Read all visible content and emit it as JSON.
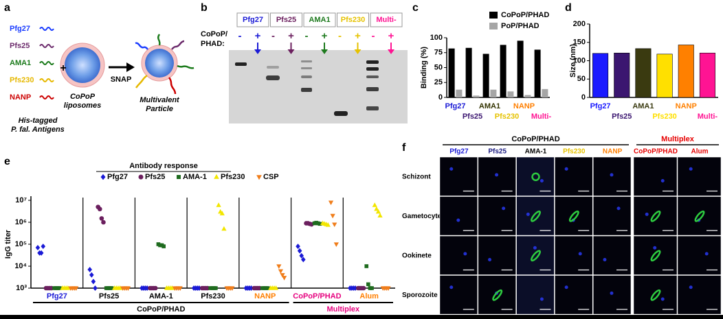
{
  "panel_a": {
    "label": "a",
    "antigens": [
      "Pfg27",
      "Pfs25",
      "AMA1",
      "Pfs230",
      "NANP"
    ],
    "antigen_colors": [
      "#1a3cff",
      "#6b2a6b",
      "#1a7a1a",
      "#e6b800",
      "#cc0000"
    ],
    "plus": "+",
    "liposome_label": [
      "CoPoP",
      "liposomes"
    ],
    "antigen_caption": [
      "His-tagged",
      "P. fal. Antigens"
    ],
    "arrow_label": "SNAP",
    "product_label": [
      "Multivalent",
      "Particle"
    ]
  },
  "panel_b": {
    "label": "b",
    "row_label": [
      "CoPoP/",
      "PHAD:"
    ],
    "lanes": [
      "Pfg27",
      "Pfs25",
      "AMA1",
      "Pfs230",
      "Multi-"
    ],
    "lane_colors": [
      "#1a1ad6",
      "#6b1f5e",
      "#1e7a1e",
      "#e6c200",
      "#ff1493"
    ],
    "minus": "-",
    "plus": "+"
  },
  "chart_data": [
    {
      "type": "bar",
      "panel_label": "c",
      "ylabel": "Binding (%)",
      "categories": [
        "Pfg27",
        "Pfs25",
        "AMA1",
        "Pfs230",
        "NANP",
        "Multi-"
      ],
      "category_colors": [
        "#1a1ad6",
        "#3b1670",
        "#333300",
        "#e6c200",
        "#ff7f00",
        "#ff1493"
      ],
      "series": [
        {
          "name": "CoPoP/PHAD",
          "color": "#000000",
          "values": [
            82,
            83,
            73,
            88,
            95,
            80
          ]
        },
        {
          "name": "PoP/PHAD",
          "color": "#a6a6a6",
          "values": [
            13,
            3,
            13,
            10,
            4,
            14
          ]
        }
      ],
      "ylim": [
        0,
        100
      ],
      "yticks": [
        0,
        25,
        50,
        75,
        100
      ]
    },
    {
      "type": "bar",
      "panel_label": "d",
      "ylabel": "Size (nm)",
      "categories": [
        "Pfg27",
        "Pfs25",
        "AMA1",
        "Pfs230",
        "NANP",
        "Multi-"
      ],
      "values": [
        120,
        121,
        133,
        118,
        143,
        121
      ],
      "colors": [
        "#1a1aff",
        "#3b1670",
        "#3a3a10",
        "#ffe000",
        "#ff8000",
        "#ff1493"
      ],
      "ylim": [
        0,
        200
      ],
      "yticks": [
        0,
        50,
        100,
        150,
        200
      ]
    },
    {
      "type": "strip",
      "panel_label": "e",
      "title": "Antibody response",
      "ylabel": "IgG titer",
      "log_y": true,
      "categories": [
        "Pfg27",
        "Pfs25",
        "AMA-1",
        "Pfs230",
        "NANP",
        "CoPoP/PHAD",
        "Alum"
      ],
      "category_colors": [
        "#1a1ad6",
        "#000000",
        "#000000",
        "#000000",
        "#ff7f00",
        "#e6007e",
        "#ff7f00"
      ],
      "category_groups": [
        {
          "name": "CoPoP/PHAD",
          "count": 5,
          "color": "#000000"
        },
        {
          "name": "Multiplex",
          "count": 2,
          "color": "#e6007e"
        }
      ],
      "series": [
        {
          "name": "Pfg27",
          "color": "#1a1ad6",
          "marker": "diamond",
          "values": [
            [
              70000,
              40000,
              40000,
              80000
            ],
            [
              7000,
              4000,
              2000,
              1000
            ],
            [
              1000,
              1000,
              1000,
              1000
            ],
            [
              1000,
              1000,
              1000,
              1000
            ],
            [
              1000,
              1000,
              1000,
              1000
            ],
            [
              80000,
              50000,
              30000,
              20000
            ],
            [
              1000,
              1000,
              1000,
              1000
            ]
          ]
        },
        {
          "name": "Pfs25",
          "color": "#6b1f5e",
          "marker": "circle",
          "values": [
            [
              1000,
              1000,
              1000,
              1000
            ],
            [
              5000000,
              4000000,
              1500000,
              1000000
            ],
            [
              1000,
              1000,
              1000,
              1000
            ],
            [
              1000,
              1000,
              1000,
              1000
            ],
            [
              1000,
              1000,
              1000,
              1000
            ],
            [
              900000,
              900000,
              850000,
              800000
            ],
            [
              1000,
              1000,
              1000,
              1000
            ]
          ]
        },
        {
          "name": "AMA-1",
          "color": "#1e6b1e",
          "marker": "square",
          "values": [
            [
              1000,
              1000,
              1000,
              1000
            ],
            [
              1000,
              1000,
              1000,
              1000
            ],
            [
              100000,
              90000,
              90000,
              80000
            ],
            [
              1000,
              1000,
              1000,
              1000
            ],
            [
              1000,
              1000,
              1000,
              1000
            ],
            [
              900000,
              950000,
              900000,
              850000
            ],
            [
              10000,
              1500,
              1000,
              1000
            ]
          ]
        },
        {
          "name": "Pfs230",
          "color": "#f2e600",
          "marker": "triangle-up",
          "values": [
            [
              1000,
              1000,
              1000,
              1000
            ],
            [
              1000,
              1000,
              1000,
              1000
            ],
            [
              1000,
              1000,
              1000,
              1000
            ],
            [
              6000000,
              3000000,
              2500000,
              500000
            ],
            [
              1000,
              1000,
              1000,
              1000
            ],
            [
              900000,
              850000,
              800000,
              750000
            ],
            [
              6000000,
              4000000,
              3000000,
              2000000
            ]
          ]
        },
        {
          "name": "CSP",
          "color": "#f07d1a",
          "marker": "triangle-down",
          "values": [
            [
              1000,
              1000,
              1000,
              1000
            ],
            [
              1000,
              1000,
              1000,
              1000
            ],
            [
              1000,
              1000,
              1000,
              1000
            ],
            [
              1000,
              1000,
              1000,
              1000
            ],
            [
              10000,
              6000,
              4000,
              3000
            ],
            [
              8000000,
              2000000,
              800000,
              100000
            ],
            [
              1000,
              1000,
              1000,
              1000
            ]
          ]
        }
      ],
      "ylim": [
        1000,
        10000000
      ],
      "yticks": [
        {
          "value": 1000,
          "label": "10³"
        },
        {
          "value": 10000,
          "label": "10⁴"
        },
        {
          "value": 100000,
          "label": "10⁵"
        },
        {
          "value": 1000000,
          "label": "10⁶"
        },
        {
          "value": 10000000,
          "label": "10⁷"
        }
      ]
    }
  ],
  "panel_f": {
    "label": "f",
    "groups": [
      {
        "name": "CoPoP/PHAD",
        "color": "#000000",
        "columns": [
          "Pfg27",
          "Pfs25",
          "AMA-1",
          "Pfs230",
          "NANP"
        ],
        "column_colors": [
          "#1a1ad6",
          "#1a1a80",
          "#000000",
          "#e6c200",
          "#ff7f00"
        ]
      },
      {
        "name": "Multiplex",
        "color": "#e60000",
        "columns": [
          "CoPoP/PHAD",
          "Alum"
        ],
        "column_colors": [
          "#e60000",
          "#e60000"
        ]
      }
    ],
    "rows": [
      "Schizont",
      "Gametocyte",
      "Ookinete",
      "Sporozoite"
    ]
  }
}
